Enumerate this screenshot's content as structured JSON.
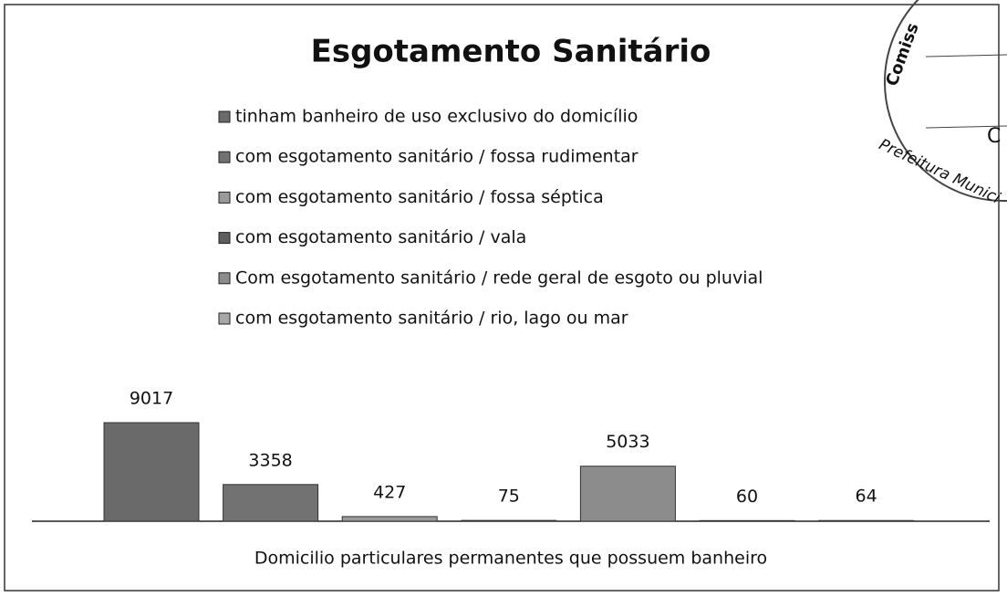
{
  "chart_data": {
    "type": "bar",
    "title": "Esgotamento Sanitário",
    "categories": [
      "Domicilio particulares permanentes que possuem banheiro"
    ],
    "series": [
      {
        "name": "tinham banheiro de uso exclusivo do domicílio",
        "color": "#6a6a6a",
        "values": [
          9017
        ]
      },
      {
        "name": "com esgotamento sanitário / fossa rudimentar",
        "color": "#727272",
        "values": [
          3358
        ]
      },
      {
        "name": "com esgotamento sanitário / fossa séptica",
        "color": "#9a9a9a",
        "values": [
          427
        ]
      },
      {
        "name": "com esgotamento sanitário / vala",
        "color": "#5e5e5e",
        "values": [
          75
        ]
      },
      {
        "name": "Com esgotamento sanitário / rede geral de esgoto ou pluvial",
        "color": "#8c8c8c",
        "values": [
          5033
        ]
      },
      {
        "name": "com esgotamento sanitário / rio, lago ou mar",
        "color": "#a8a8a8",
        "values": [
          60
        ]
      },
      {
        "name": null,
        "color": "#a0a0a0",
        "values": [
          64
        ]
      }
    ],
    "stamp": [
      "Comiss",
      "Prefeitura Munici",
      "C"
    ]
  }
}
